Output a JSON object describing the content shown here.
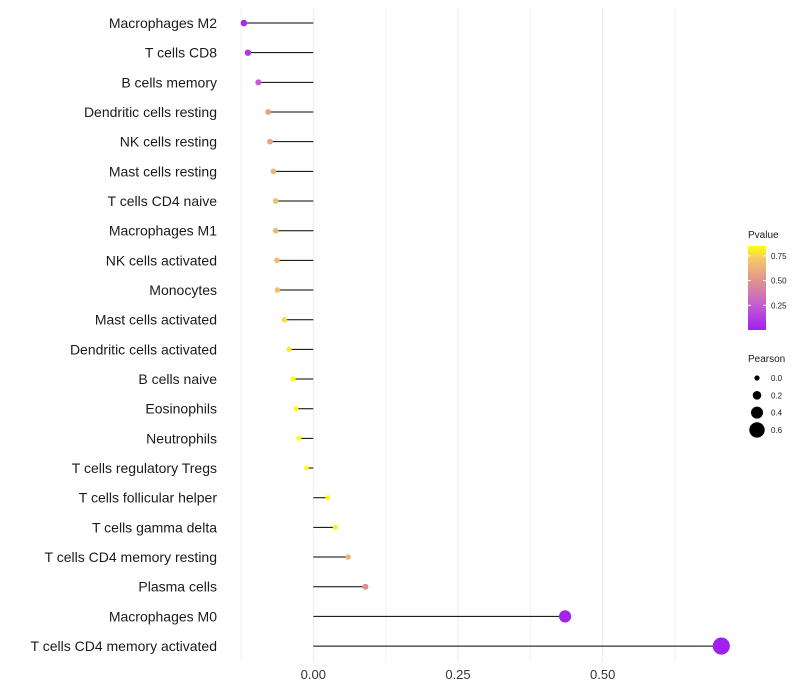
{
  "chart_data": {
    "type": "lollipop",
    "title": "",
    "xlabel": "",
    "ylabel": "",
    "xlim": [
      -0.125,
      0.72
    ],
    "xticks": [
      0.0,
      0.25,
      0.5
    ],
    "xtick_labels": [
      "0.00",
      "0.25",
      "0.50"
    ],
    "grid": true,
    "categories": [
      "Macrophages M2",
      "T cells CD8",
      "B cells memory",
      "Dendritic cells resting",
      "NK cells resting",
      "Mast cells resting",
      "T cells CD4 naive",
      "Macrophages M1",
      "NK cells activated",
      "Monocytes",
      "Mast cells activated",
      "Dendritic cells activated",
      "B cells naive",
      "Eosinophils",
      "Neutrophils",
      "T cells regulatory  Tregs ",
      "T cells follicular helper",
      "T cells gamma delta",
      "T cells CD4 memory resting",
      "Plasma cells",
      "Macrophages M0",
      "T cells CD4 memory activated"
    ],
    "series": [
      {
        "name": "Pearson",
        "values": [
          -0.12,
          -0.113,
          -0.095,
          -0.078,
          -0.075,
          -0.069,
          -0.065,
          -0.065,
          -0.063,
          -0.062,
          -0.05,
          -0.042,
          -0.035,
          -0.03,
          -0.025,
          -0.012,
          0.025,
          0.038,
          0.06,
          0.09,
          0.435,
          0.705
        ]
      },
      {
        "name": "Pvalue",
        "values": [
          0.05,
          0.1,
          0.25,
          0.55,
          0.56,
          0.63,
          0.66,
          0.65,
          0.67,
          0.68,
          0.78,
          0.8,
          0.86,
          0.88,
          0.91,
          0.96,
          0.9,
          0.83,
          0.62,
          0.47,
          0.02,
          0.0
        ]
      }
    ],
    "legend_position": "right",
    "pvalue_legend": {
      "title": "Pvalue",
      "range": [
        0.0,
        0.85
      ],
      "ticks": [
        0.25,
        0.5,
        0.75
      ],
      "tick_labels": [
        "0.25",
        "0.50",
        "0.75"
      ],
      "color_low": "#a020f0",
      "color_mid": "#d98a8a",
      "color_high": "#ffff00"
    },
    "pearson_legend": {
      "title": "Pearson",
      "values": [
        0.0,
        0.2,
        0.4,
        0.6
      ],
      "labels": [
        "0.0",
        "0.2",
        "0.4",
        "0.6"
      ]
    },
    "colors": {
      "segment": "#000000",
      "grid": "#ebebeb",
      "text": "#1a1a1a"
    }
  }
}
